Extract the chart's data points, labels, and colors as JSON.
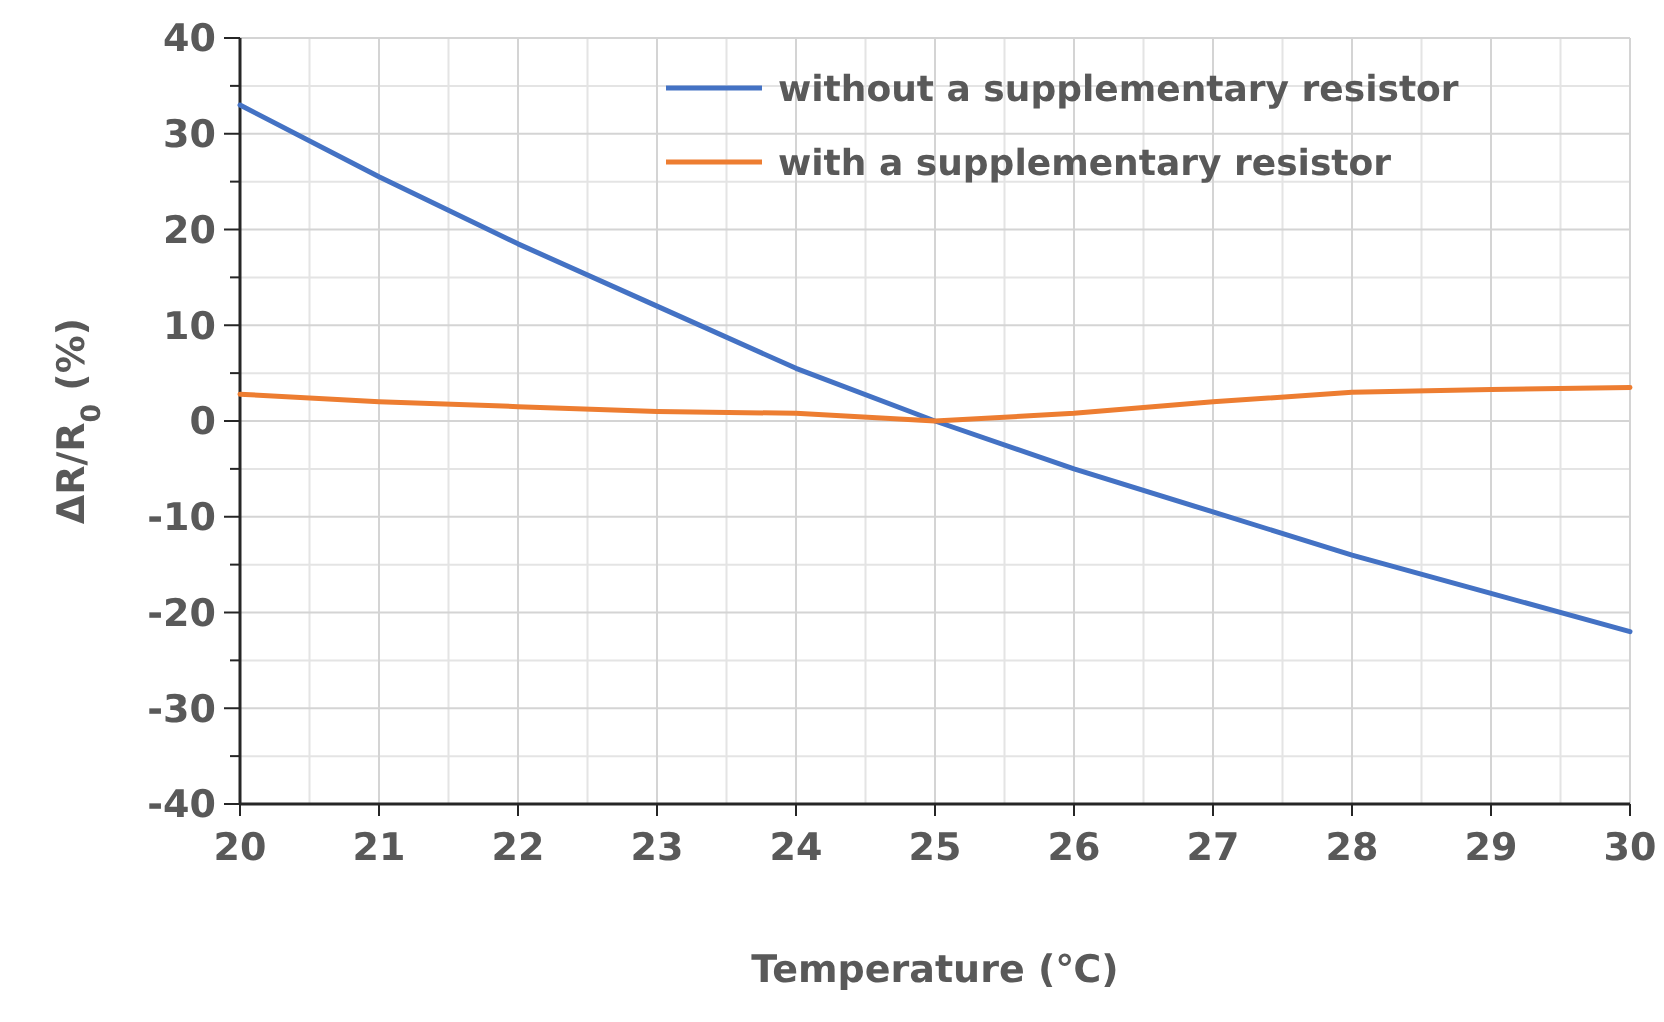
{
  "chart_data": {
    "type": "line",
    "xlabel": "Temperature (℃)",
    "ylabel": "ΔR/R$_{0}$ (%)",
    "x": [
      20,
      21,
      22,
      23,
      24,
      25,
      26,
      27,
      28,
      29,
      30
    ],
    "series": [
      {
        "name": "without a supplementary resistor",
        "color": "#4472c4",
        "values": [
          33,
          25.5,
          18.5,
          12,
          5.5,
          0,
          -5,
          -9.5,
          -14,
          -18,
          -22
        ]
      },
      {
        "name": "with a supplementary resistor",
        "color": "#ed7d31",
        "values": [
          2.8,
          2,
          1.5,
          1,
          0.8,
          0,
          0.8,
          2,
          3,
          3.3,
          3.5
        ]
      }
    ],
    "xlim": [
      20,
      30
    ],
    "xticks": [
      20,
      21,
      22,
      23,
      24,
      25,
      26,
      27,
      28,
      29,
      30
    ],
    "ylim": [
      -40,
      40
    ],
    "yticks": [
      -40,
      -30,
      -20,
      -10,
      0,
      10,
      20,
      30,
      40
    ],
    "grid": true,
    "legend": "top right",
    "marker": "none",
    "line_style": "solid"
  }
}
